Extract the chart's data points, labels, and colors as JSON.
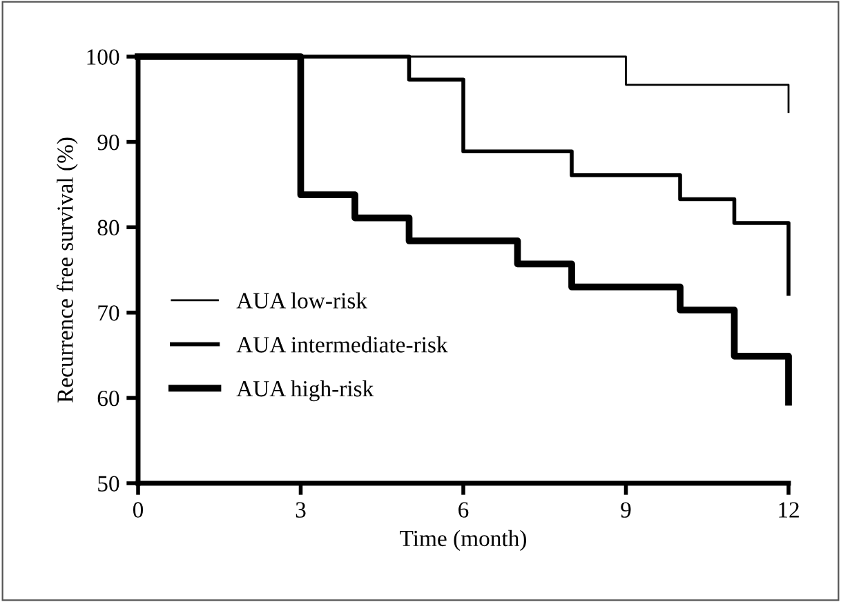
{
  "chart_data": {
    "type": "step",
    "xlabel": "Time (month)",
    "ylabel": "Recurrence free survival (%)",
    "xlim": [
      0,
      12
    ],
    "ylim": [
      50,
      100
    ],
    "xticks": [
      0,
      3,
      6,
      9,
      12
    ],
    "yticks": [
      50,
      60,
      70,
      80,
      90,
      100
    ],
    "grid": false,
    "legend": "left",
    "marker": "none",
    "line_style": "solid",
    "series": [
      {
        "name": "AUA low-risk",
        "color": "#000000",
        "x": [
          0,
          9,
          12,
          12
        ],
        "values": [
          100,
          96.7,
          96.7,
          93.5
        ]
      },
      {
        "name": "AUA intermediate-risk",
        "color": "#000000",
        "x": [
          0,
          5,
          6,
          8,
          10,
          11,
          12,
          12
        ],
        "values": [
          100,
          97.3,
          88.9,
          86.1,
          83.3,
          80.5,
          80.5,
          72.2
        ]
      },
      {
        "name": "AUA high-risk",
        "color": "#000000",
        "x": [
          0,
          3,
          4,
          5,
          7,
          8,
          10,
          11,
          12,
          12
        ],
        "values": [
          100,
          83.8,
          81.1,
          78.4,
          75.7,
          73.0,
          70.3,
          64.9,
          64.9,
          59.5
        ]
      }
    ]
  }
}
